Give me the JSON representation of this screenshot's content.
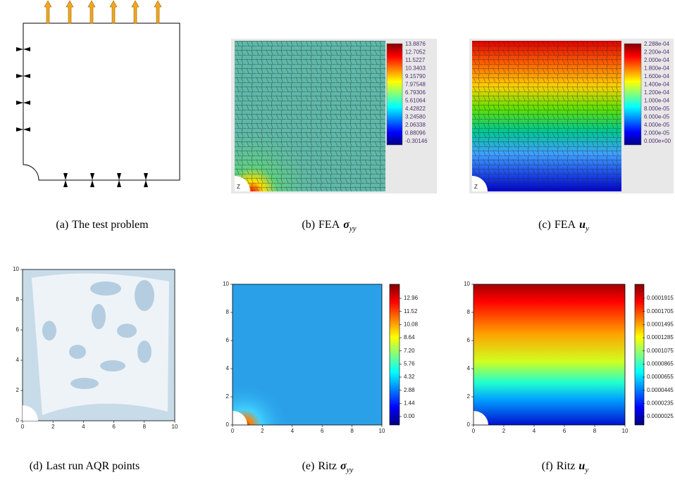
{
  "panels": [
    {
      "label": "(a)",
      "caption": "The test problem"
    },
    {
      "label": "(b)",
      "caption": "FEA",
      "symbol": "σ",
      "subscript": "yy",
      "corner_label": "Z",
      "colorbar_ticks": [
        "13.8876",
        "12.7052",
        "11.5227",
        "10.3403",
        "9.15790",
        "7.97548",
        "6.79306",
        "5.61064",
        "4.42822",
        "3.24580",
        "2.06338",
        "0.88096",
        "-0.30146"
      ]
    },
    {
      "label": "(c)",
      "caption": "FEA",
      "symbol": "u",
      "subscript": "y",
      "corner_label": "Z",
      "colorbar_ticks": [
        "2.288e-04",
        "2.200e-04",
        "2.000e-04",
        "1.800e-04",
        "1.600e-04",
        "1.400e-04",
        "1.200e-04",
        "1.000e-04",
        "8.000e-05",
        "6.000e-05",
        "4.000e-05",
        "2.000e-05",
        "0.000e+00"
      ]
    },
    {
      "label": "(d)",
      "caption": "Last run AQR points",
      "xticks": [
        "0",
        "2",
        "4",
        "6",
        "8",
        "10"
      ],
      "yticks": [
        "0",
        "2",
        "4",
        "6",
        "8",
        "10"
      ]
    },
    {
      "label": "(e)",
      "caption": "Ritz",
      "symbol": "σ",
      "subscript": "yy",
      "xticks": [
        "0",
        "2",
        "4",
        "6",
        "8",
        "10"
      ],
      "yticks": [
        "0",
        "2",
        "4",
        "6",
        "8",
        "10"
      ],
      "colorbar_ticks": [
        "12.96",
        "11.52",
        "10.08",
        "8.64",
        "7.20",
        "5.76",
        "4.32",
        "2.88",
        "1.44",
        "0.00"
      ]
    },
    {
      "label": "(f)",
      "caption": "Ritz",
      "symbol": "u",
      "subscript": "y",
      "xticks": [
        "0",
        "2",
        "4",
        "6",
        "8",
        "10"
      ],
      "yticks": [
        "0",
        "2",
        "4",
        "6",
        "8",
        "10"
      ],
      "colorbar_ticks": [
        "0.0001915",
        "0.0001705",
        "0.0001495",
        "0.0001285",
        "0.0001075",
        "0.0000865",
        "0.0000655",
        "0.0000445",
        "0.0000235",
        "0.0000025"
      ]
    }
  ]
}
